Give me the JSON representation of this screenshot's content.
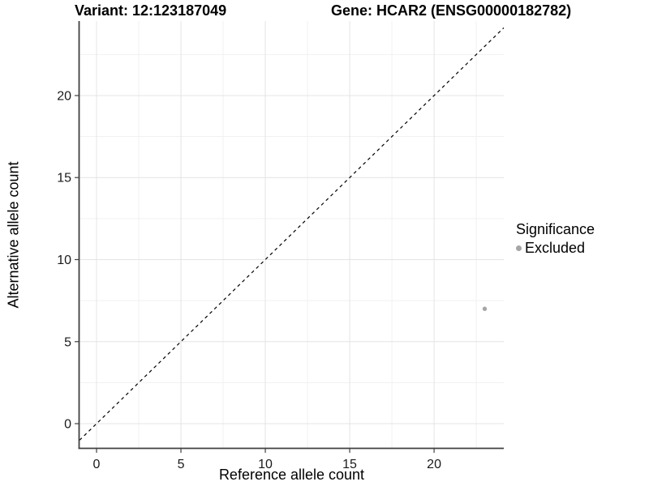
{
  "header": {
    "variant_title": "Variant: 12:123187049",
    "gene_title": "Gene: HCAR2 (ENSG00000182782)"
  },
  "axes": {
    "x": {
      "label": "Reference allele count"
    },
    "y": {
      "label": "Alternative allele count"
    }
  },
  "legend": {
    "title": "Significance",
    "items": [
      {
        "label": "Excluded",
        "color": "#a6a6a6"
      }
    ]
  },
  "colors": {
    "point": "#a6a6a6",
    "grid_major": "#e4e4e4",
    "grid_minor": "#f1f1f1",
    "axis_line": "#404040",
    "tick": "#404040",
    "tick_label": "#1a1a1a",
    "reference_line": "#000000",
    "background": "#ffffff"
  },
  "chart_data": {
    "type": "scatter",
    "title": "Variant: 12:123187049 | Gene: HCAR2 (ENSG00000182782)",
    "xlabel": "Reference allele count",
    "ylabel": "Alternative allele count",
    "xlim": [
      -1.01,
      24.13
    ],
    "ylim": [
      -1.48,
      24.54
    ],
    "x_ticks": [
      0,
      5,
      10,
      15,
      20
    ],
    "y_ticks": [
      0,
      5,
      10,
      15,
      20
    ],
    "x_minor_gridlines": [
      2.5,
      7.5,
      12.5,
      17.5,
      22.5
    ],
    "y_minor_gridlines": [
      2.5,
      7.5,
      12.5,
      17.5,
      22.5
    ],
    "grid": true,
    "legend_position": "right",
    "series": [
      {
        "name": "Excluded",
        "color": "#a6a6a6",
        "points": [
          {
            "x": 23,
            "y": 7
          }
        ]
      }
    ],
    "reference_line": {
      "slope": 1,
      "intercept": 0,
      "style": "dashed",
      "color": "#000000"
    }
  }
}
